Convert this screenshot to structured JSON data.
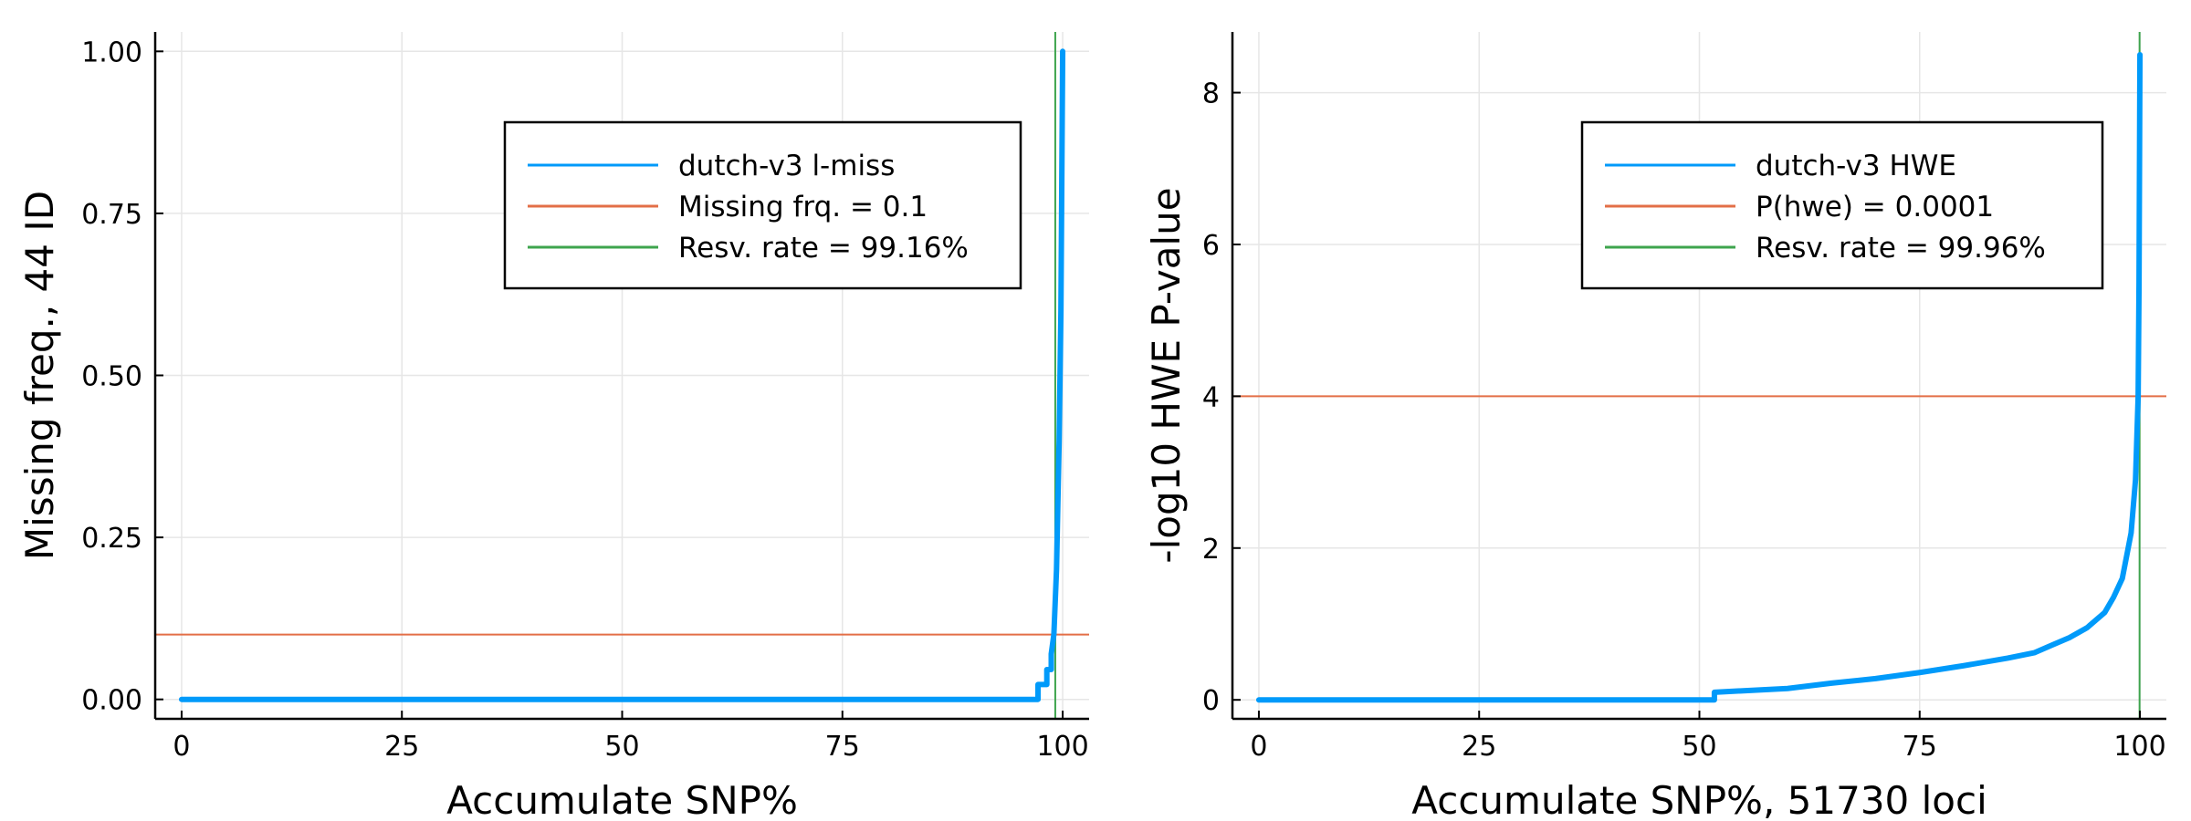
{
  "chart_data": [
    {
      "type": "line",
      "title": "",
      "xlabel": "Accumulate SNP%",
      "ylabel": "Missing freq., 44 ID",
      "xlim": [
        -3,
        103
      ],
      "ylim": [
        -0.03,
        1.03
      ],
      "xticks": [
        0,
        25,
        50,
        75,
        100
      ],
      "yticks": [
        0.0,
        0.25,
        0.5,
        0.75,
        1.0
      ],
      "ytick_labels": [
        "0.00",
        "0.25",
        "0.50",
        "0.75",
        "1.00"
      ],
      "grid": true,
      "legend_position": "top-right",
      "series": [
        {
          "name": "dutch-v3 l-miss",
          "color": "#009AFA",
          "x": [
            0,
            97.2,
            97.2,
            98.2,
            98.2,
            98.7,
            98.7,
            99.0,
            99.3,
            99.6,
            99.8,
            99.9,
            100
          ],
          "y": [
            0,
            0,
            0.023,
            0.023,
            0.046,
            0.046,
            0.07,
            0.1,
            0.2,
            0.4,
            0.6,
            0.8,
            1.0
          ]
        }
      ],
      "hlines": [
        {
          "name": "Missing frq. = 0.1",
          "y": 0.1,
          "color": "#E36F47"
        }
      ],
      "vlines": [
        {
          "name": "Resv. rate = 99.16%",
          "x": 99.16,
          "color": "#3EA44E"
        }
      ]
    },
    {
      "type": "line",
      "title": "",
      "xlabel": "Accumulate SNP%, 51730 loci",
      "ylabel": "-log10 HWE P-value",
      "xlim": [
        -3,
        103
      ],
      "ylim": [
        -0.25,
        8.8
      ],
      "xticks": [
        0,
        25,
        50,
        75,
        100
      ],
      "yticks": [
        0,
        2,
        4,
        6,
        8
      ],
      "ytick_labels": [
        "0",
        "2",
        "4",
        "6",
        "8"
      ],
      "grid": true,
      "legend_position": "top-right",
      "series": [
        {
          "name": "dutch-v3 HWE",
          "color": "#009AFA",
          "x": [
            0,
            51.7,
            51.7,
            55,
            60,
            65,
            70,
            75,
            80,
            85,
            88,
            90,
            92,
            94,
            96,
            97,
            98,
            99,
            99.5,
            99.8,
            99.9,
            100
          ],
          "y": [
            0,
            0,
            0.1,
            0.12,
            0.15,
            0.22,
            0.28,
            0.36,
            0.45,
            0.55,
            0.62,
            0.72,
            0.82,
            0.95,
            1.15,
            1.35,
            1.6,
            2.2,
            2.9,
            4.0,
            5.5,
            8.5
          ]
        }
      ],
      "hlines": [
        {
          "name": "P(hwe) = 0.0001",
          "y": 4.0,
          "color": "#E36F47"
        }
      ],
      "vlines": [
        {
          "name": "Resv. rate = 99.96%",
          "x": 99.96,
          "color": "#3EA44E"
        }
      ]
    }
  ]
}
